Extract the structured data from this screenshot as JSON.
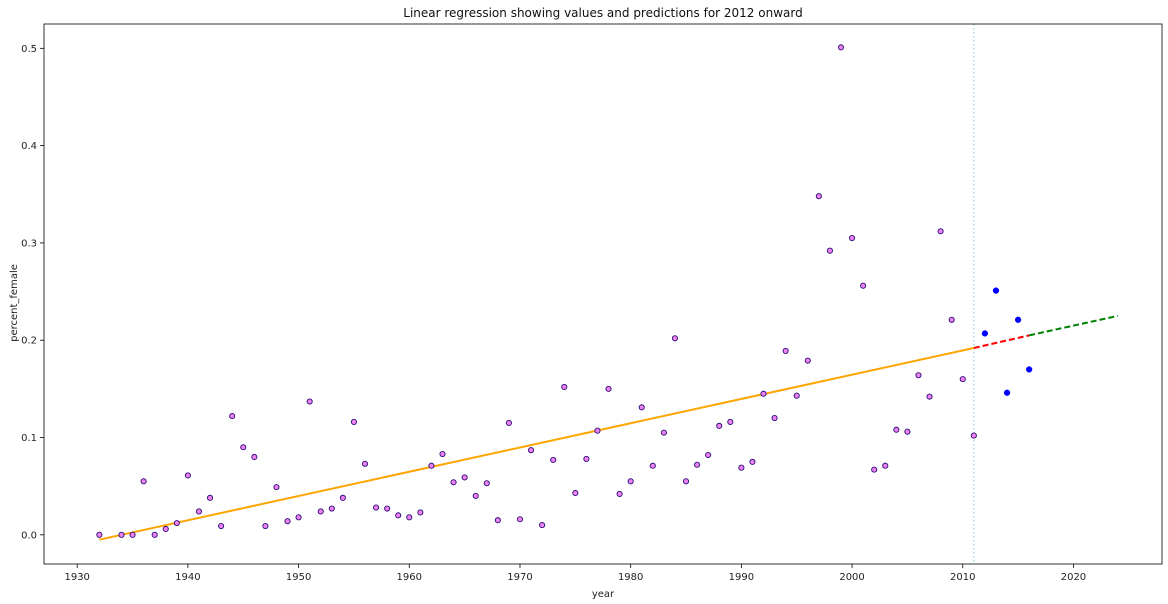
{
  "chart_data": {
    "type": "scatter",
    "title": "Linear regression showing values and predictions for 2012 onward",
    "xlabel": "year",
    "ylabel": "percent_female",
    "xlim": [
      1927,
      2028
    ],
    "ylim": [
      -0.03,
      0.525
    ],
    "x_ticks": [
      1930,
      1940,
      1950,
      1960,
      1970,
      1980,
      1990,
      2000,
      2010,
      2020
    ],
    "y_ticks": [
      0.0,
      0.1,
      0.2,
      0.3,
      0.4,
      0.5
    ],
    "grid": false,
    "cutoff_year": 2011,
    "colors": {
      "historical_fill": "#ee82ee",
      "historical_edge": "#2a0a7a",
      "recent": "#0000ff",
      "fit": "#ffa500",
      "prediction_near": "#ff0000",
      "prediction_far": "#008000",
      "cutoff": "#8fd3e0"
    },
    "series": [
      {
        "x": [
          1932,
          1934,
          1935,
          1936,
          1937,
          1938,
          1939,
          1940,
          1941,
          1942,
          1943,
          1944,
          1945,
          1946,
          1947,
          1948,
          1949,
          1950,
          1951,
          1952,
          1953,
          1954,
          1955,
          1956,
          1957,
          1958,
          1959,
          1960,
          1961,
          1962,
          1963,
          1964,
          1965,
          1966,
          1967,
          1968,
          1969,
          1970,
          1971,
          1972,
          1973,
          1974,
          1975,
          1976,
          1977,
          1978,
          1979,
          1980,
          1981,
          1982,
          1983,
          1984,
          1985,
          1986,
          1987,
          1988,
          1989,
          1990,
          1991,
          1992,
          1993,
          1994,
          1995,
          1996,
          1997,
          1998,
          1999,
          2000,
          2001,
          2002,
          2003,
          2004,
          2005,
          2006,
          2007,
          2008,
          2009,
          2010,
          2011
        ],
        "y": [
          0.0,
          0.0,
          0.0,
          0.055,
          0.0,
          0.006,
          0.012,
          0.061,
          0.024,
          0.038,
          0.009,
          0.122,
          0.09,
          0.08,
          0.009,
          0.049,
          0.014,
          0.018,
          0.137,
          0.024,
          0.027,
          0.038,
          0.116,
          0.073,
          0.028,
          0.027,
          0.02,
          0.018,
          0.023,
          0.071,
          0.083,
          0.054,
          0.059,
          0.04,
          0.053,
          0.015,
          0.115,
          0.016,
          0.087,
          0.01,
          0.077,
          0.152,
          0.043,
          0.078,
          0.107,
          0.15,
          0.042,
          0.055,
          0.131,
          0.071,
          0.105,
          0.202,
          0.055,
          0.072,
          0.082,
          0.112,
          0.116,
          0.069,
          0.075,
          0.145,
          0.12,
          0.189,
          0.143,
          0.179,
          0.348,
          0.292,
          0.501,
          0.305,
          0.256,
          0.067,
          0.071,
          0.108,
          0.106,
          0.164,
          0.142,
          0.312,
          0.221,
          0.16,
          0.102
        ]
      },
      {
        "x": [
          2012,
          2013,
          2014,
          2015,
          2016
        ],
        "y": [
          0.207,
          0.251,
          0.146,
          0.221,
          0.17
        ]
      }
    ],
    "lines": [
      {
        "x": [
          1932,
          2011
        ],
        "y": [
          -0.005,
          0.192
        ]
      },
      {
        "x": [
          2011,
          2016
        ],
        "y": [
          0.192,
          0.205
        ]
      },
      {
        "x": [
          2016,
          2024
        ],
        "y": [
          0.205,
          0.225
        ]
      }
    ]
  }
}
